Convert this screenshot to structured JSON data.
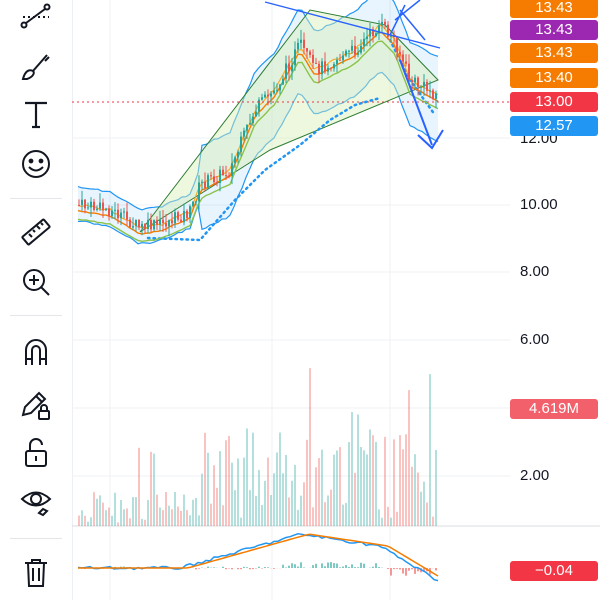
{
  "toolbar": {
    "tools": [
      {
        "name": "trend-line-tool-icon"
      },
      {
        "name": "brush-tool-icon"
      },
      {
        "name": "text-tool-icon",
        "glyph": "T"
      },
      {
        "name": "emoji-tool-icon"
      },
      {
        "name": "measure-ruler-icon"
      },
      {
        "name": "zoom-in-icon"
      },
      {
        "name": "magnet-icon"
      },
      {
        "name": "lock-drawings-icon"
      },
      {
        "name": "unlock-icon"
      },
      {
        "name": "eye-visibility-icon"
      },
      {
        "name": "trash-icon"
      }
    ]
  },
  "price_labels": [
    {
      "text": "13.43",
      "color": "#f57c00"
    },
    {
      "text": "13.43",
      "color": "#9c27b0"
    },
    {
      "text": "13.43",
      "color": "#f57c00"
    },
    {
      "text": "13.40",
      "color": "#f57c00"
    },
    {
      "text": "13.00",
      "color": "#f23645"
    },
    {
      "text": "12.57",
      "color": "#2196f3"
    }
  ],
  "price_axis": [
    "12.00",
    "10.00",
    "8.00",
    "6.00",
    "2.00"
  ],
  "volume_label": {
    "text": "4.619M",
    "color": "#f2606c"
  },
  "macd_label": {
    "text": "−0.04",
    "color": "#f23645"
  },
  "colors": {
    "up": "#26a69a",
    "down": "#ef5350",
    "ma_orange": "#f57c00",
    "bollinger": "#2196f3",
    "current_price_line": "#f23645"
  }
}
